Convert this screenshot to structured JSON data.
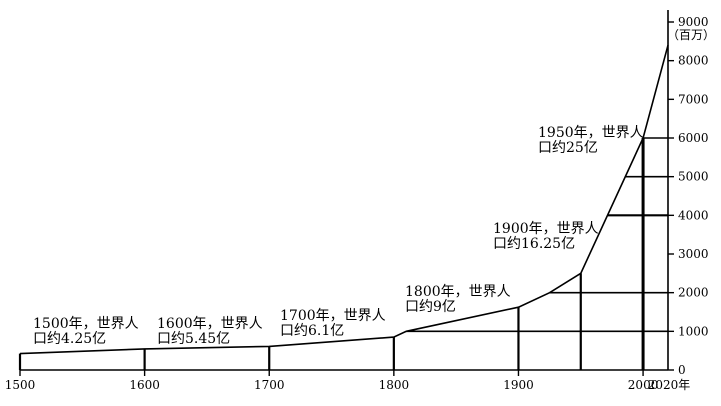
{
  "chart_data": {
    "type": "line",
    "title": "",
    "xlabel": "2020年",
    "ylabel": "（百万）",
    "xlim": [
      1500,
      2020
    ],
    "ylim": [
      0,
      9000
    ],
    "x_ticks": [
      1500,
      1600,
      1700,
      1800,
      1900,
      2000
    ],
    "y_ticks": [
      0,
      1000,
      2000,
      3000,
      4000,
      5000,
      6000,
      7000,
      8000,
      9000
    ],
    "axis_color": "#000000",
    "line_color": "#000000",
    "grid": false,
    "series": [
      {
        "x": [
          1500,
          1600,
          1700,
          1800,
          1810,
          1900,
          1925,
          1950,
          2000,
          2020
        ],
        "y": [
          425,
          545,
          610,
          850,
          1000,
          1625,
          2000,
          2500,
          6000,
          8400
        ]
      }
    ],
    "annotations": [
      {
        "year": 1500,
        "line1": "1500年，世界人",
        "line2": "口约4.25亿"
      },
      {
        "year": 1600,
        "line1": "1600年，世界人",
        "line2": "口约5.45亿"
      },
      {
        "year": 1700,
        "line1": "1700年，世界人",
        "line2": "口约6.1亿"
      },
      {
        "year": 1800,
        "line1": "1800年，世界人",
        "line2": "口约9亿"
      },
      {
        "year": 1900,
        "line1": "1900年，世界人",
        "line2": "口约16.25亿"
      },
      {
        "year": 1950,
        "line1": "1950年，世界人",
        "line2": "口约25亿"
      }
    ]
  }
}
